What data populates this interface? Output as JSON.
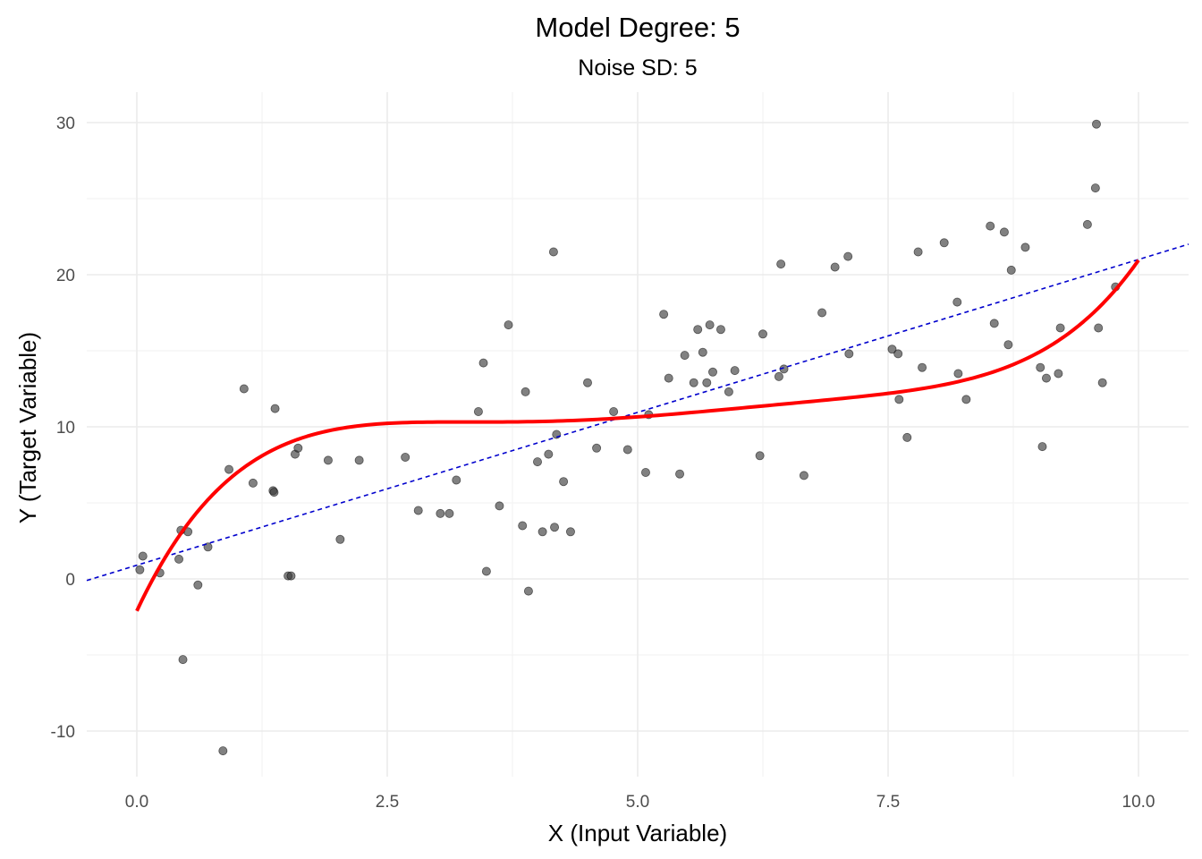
{
  "chart_data": {
    "type": "scatter",
    "title": "Model Degree: 5",
    "subtitle": "Noise SD: 5",
    "xlabel": "X (Input Variable)",
    "ylabel": "Y (Target Variable)",
    "xlim": [
      -0.5,
      10.5
    ],
    "ylim": [
      -13,
      32
    ],
    "x_ticks": [
      0.0,
      2.5,
      5.0,
      7.5,
      10.0
    ],
    "x_tick_labels": [
      "0.0",
      "2.5",
      "5.0",
      "7.5",
      "10.0"
    ],
    "y_ticks": [
      -10,
      0,
      10,
      20,
      30
    ],
    "y_tick_labels": [
      "-10",
      "0",
      "10",
      "20",
      "30"
    ],
    "grid": true,
    "legend": "none",
    "colors": {
      "points": "#333333",
      "poly_fit": "#ff0000",
      "linear_fit": "#0000cd"
    },
    "series": [
      {
        "type": "scatter",
        "points": [
          [
            0.03,
            0.6
          ],
          [
            0.06,
            1.5
          ],
          [
            0.23,
            0.4
          ],
          [
            0.42,
            1.3
          ],
          [
            0.44,
            3.2
          ],
          [
            0.46,
            -5.3
          ],
          [
            0.51,
            3.1
          ],
          [
            0.61,
            -0.4
          ],
          [
            0.71,
            2.1
          ],
          [
            0.86,
            -11.3
          ],
          [
            0.92,
            7.2
          ],
          [
            1.07,
            12.5
          ],
          [
            1.16,
            6.3
          ],
          [
            1.36,
            5.8
          ],
          [
            1.37,
            5.7
          ],
          [
            1.38,
            11.2
          ],
          [
            1.51,
            0.2
          ],
          [
            1.54,
            0.2
          ],
          [
            1.58,
            8.2
          ],
          [
            1.61,
            8.6
          ],
          [
            1.91,
            7.8
          ],
          [
            2.03,
            2.6
          ],
          [
            2.22,
            7.8
          ],
          [
            2.68,
            8.0
          ],
          [
            2.81,
            4.5
          ],
          [
            3.03,
            4.3
          ],
          [
            3.12,
            4.3
          ],
          [
            3.19,
            6.5
          ],
          [
            3.41,
            11.0
          ],
          [
            3.46,
            14.2
          ],
          [
            3.49,
            0.5
          ],
          [
            3.62,
            4.8
          ],
          [
            3.71,
            16.7
          ],
          [
            3.85,
            3.5
          ],
          [
            3.88,
            12.3
          ],
          [
            3.91,
            -0.8
          ],
          [
            4.0,
            7.7
          ],
          [
            4.05,
            3.1
          ],
          [
            4.11,
            8.2
          ],
          [
            4.16,
            21.5
          ],
          [
            4.17,
            3.4
          ],
          [
            4.19,
            9.5
          ],
          [
            4.26,
            6.4
          ],
          [
            4.33,
            3.1
          ],
          [
            4.5,
            12.9
          ],
          [
            4.59,
            8.6
          ],
          [
            4.76,
            11.0
          ],
          [
            4.9,
            8.5
          ],
          [
            5.08,
            7.0
          ],
          [
            5.11,
            10.8
          ],
          [
            5.26,
            17.4
          ],
          [
            5.31,
            13.2
          ],
          [
            5.42,
            6.9
          ],
          [
            5.47,
            14.7
          ],
          [
            5.56,
            12.9
          ],
          [
            5.6,
            16.4
          ],
          [
            5.65,
            14.9
          ],
          [
            5.69,
            12.9
          ],
          [
            5.72,
            16.7
          ],
          [
            5.75,
            13.6
          ],
          [
            5.83,
            16.4
          ],
          [
            5.91,
            12.3
          ],
          [
            5.97,
            13.7
          ],
          [
            6.22,
            8.1
          ],
          [
            6.25,
            16.1
          ],
          [
            6.41,
            13.3
          ],
          [
            6.43,
            20.7
          ],
          [
            6.46,
            13.8
          ],
          [
            6.66,
            6.8
          ],
          [
            6.84,
            17.5
          ],
          [
            6.97,
            20.5
          ],
          [
            7.1,
            21.2
          ],
          [
            7.11,
            14.8
          ],
          [
            7.54,
            15.1
          ],
          [
            7.6,
            14.8
          ],
          [
            7.61,
            11.8
          ],
          [
            7.69,
            9.3
          ],
          [
            7.8,
            21.5
          ],
          [
            7.84,
            13.9
          ],
          [
            8.06,
            22.1
          ],
          [
            8.19,
            18.2
          ],
          [
            8.2,
            13.5
          ],
          [
            8.28,
            11.8
          ],
          [
            8.52,
            23.2
          ],
          [
            8.56,
            16.8
          ],
          [
            8.66,
            22.8
          ],
          [
            8.7,
            15.4
          ],
          [
            8.73,
            20.3
          ],
          [
            8.87,
            21.8
          ],
          [
            9.02,
            13.9
          ],
          [
            9.04,
            8.7
          ],
          [
            9.08,
            13.2
          ],
          [
            9.2,
            13.5
          ],
          [
            9.22,
            16.5
          ],
          [
            9.49,
            23.3
          ],
          [
            9.57,
            25.7
          ],
          [
            9.58,
            29.9
          ],
          [
            9.6,
            16.5
          ],
          [
            9.64,
            12.9
          ],
          [
            9.77,
            19.2
          ]
        ]
      },
      {
        "type": "line",
        "x_range": [
          0,
          10
        ],
        "polynomial": [
          -2.1,
          14.015,
          -6.066,
          1.248,
          -0.1215,
          0.004565
        ]
      },
      {
        "type": "line",
        "style": "dashed",
        "x_range": [
          -0.5,
          10.5
        ],
        "linear": [
          0.9,
          2.01
        ]
      }
    ]
  }
}
